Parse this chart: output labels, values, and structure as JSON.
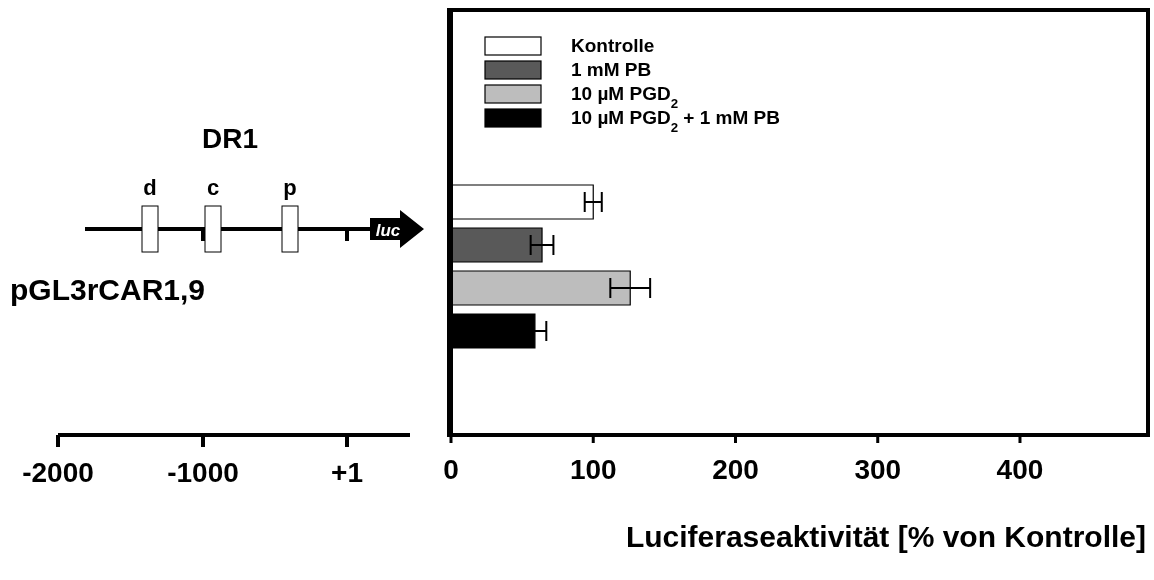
{
  "chart_data": {
    "type": "bar",
    "orientation": "horizontal",
    "xlabel": "Luciferaseaktivität [% von Kontrolle]",
    "categories": [
      null
    ],
    "series": [
      {
        "name": "Kontrolle",
        "color": "#ffffff",
        "values": [
          100
        ],
        "errors": [
          6
        ]
      },
      {
        "name": "1 mM PB",
        "color": "#595959",
        "values": [
          64
        ],
        "errors": [
          8
        ]
      },
      {
        "name": "10 µM PGD$_{2}$",
        "color": "#bdbdbd",
        "values": [
          126
        ],
        "errors": [
          14
        ]
      },
      {
        "name": "10 µM PGD$_{2}$ + 1 mM PB",
        "color": "#000000",
        "values": [
          59
        ],
        "errors": [
          8
        ]
      }
    ],
    "xlim": [
      0,
      490
    ],
    "xticks": [
      0,
      100,
      200,
      300,
      400
    ],
    "grid": false,
    "legend": "top left",
    "annotations": [
      "DR1",
      "d",
      "c",
      "p",
      "luc",
      "pGL3rCAR1,9",
      "-2000",
      "-1000",
      "+1"
    ]
  }
}
